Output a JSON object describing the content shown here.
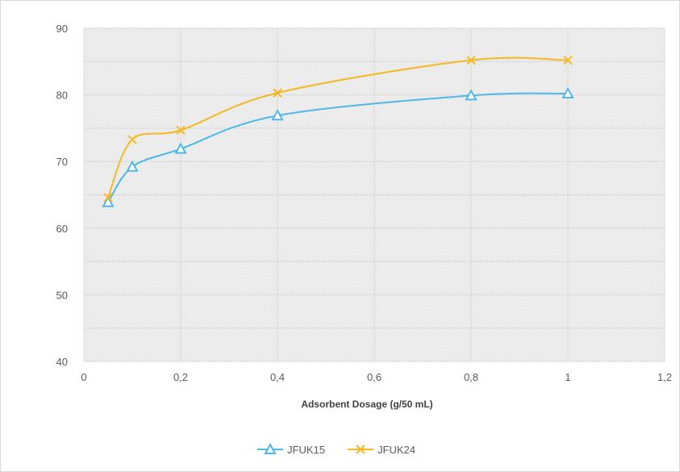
{
  "chart_data": {
    "type": "line",
    "title": "",
    "xlabel": "Adsorbent  Dosage (g/50 mL)",
    "ylabel": "",
    "xlim": [
      0,
      1.2
    ],
    "ylim": [
      40,
      90
    ],
    "x_ticks": [
      0,
      0.2,
      0.4,
      0.6,
      0.8,
      1,
      1.2
    ],
    "x_tick_labels": [
      "0",
      "0,2",
      "0,4",
      "0,6",
      "0,8",
      "1",
      "1,2"
    ],
    "y_ticks": [
      40,
      50,
      60,
      70,
      80,
      90
    ],
    "y_tick_labels": [
      "40",
      "50",
      "60",
      "70",
      "80",
      "90"
    ],
    "grid": true,
    "smooth": true,
    "legend_position": "bottom",
    "series": [
      {
        "name": "JFUK15",
        "color": "#4db8e8",
        "marker": "triangle",
        "x": [
          0.05,
          0.1,
          0.2,
          0.4,
          0.8,
          1.0
        ],
        "y": [
          63.9,
          69.2,
          71.9,
          76.9,
          79.9,
          80.2
        ]
      },
      {
        "name": "JFUK24",
        "color": "#f5b823",
        "marker": "x",
        "x": [
          0.05,
          0.1,
          0.2,
          0.4,
          0.8,
          1.0
        ],
        "y": [
          64.6,
          73.3,
          74.7,
          80.3,
          85.2,
          85.2
        ]
      }
    ]
  }
}
